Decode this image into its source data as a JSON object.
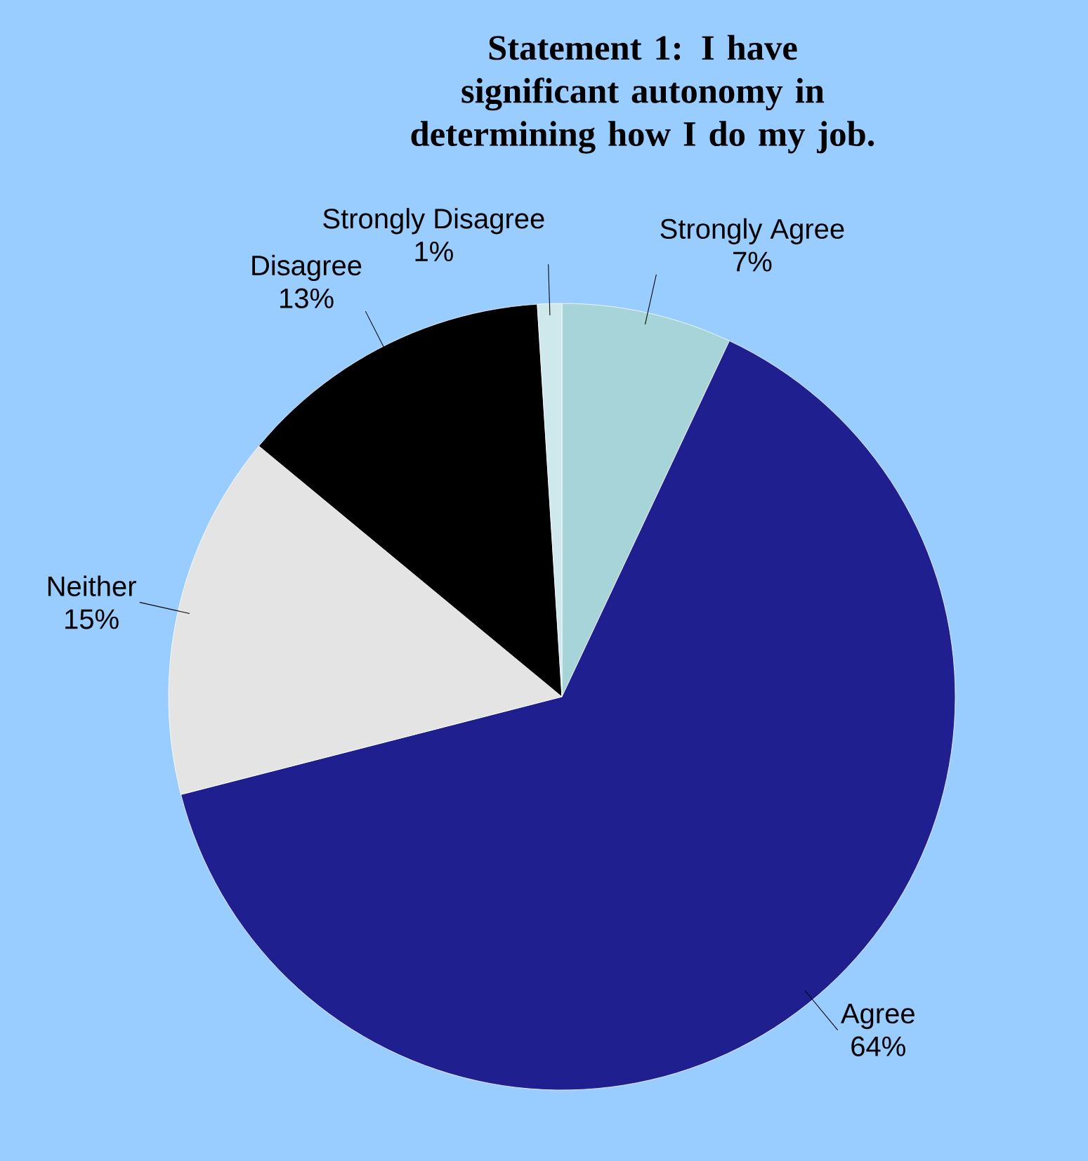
{
  "chart_data": {
    "type": "pie",
    "title": "Statement 1: I have significant autonomy in determining how I do my job.",
    "categories": [
      "Strongly Agree",
      "Agree",
      "Neither",
      "Disagree",
      "Strongly Disagree"
    ],
    "values": [
      7,
      64,
      15,
      13,
      1
    ],
    "value_labels": [
      "7%",
      "64%",
      "15%",
      "13%",
      "1%"
    ],
    "colors": [
      "#a6d4d8",
      "#1f1f8f",
      "#e4e4e4",
      "#000000",
      "#cfe8ec"
    ]
  }
}
